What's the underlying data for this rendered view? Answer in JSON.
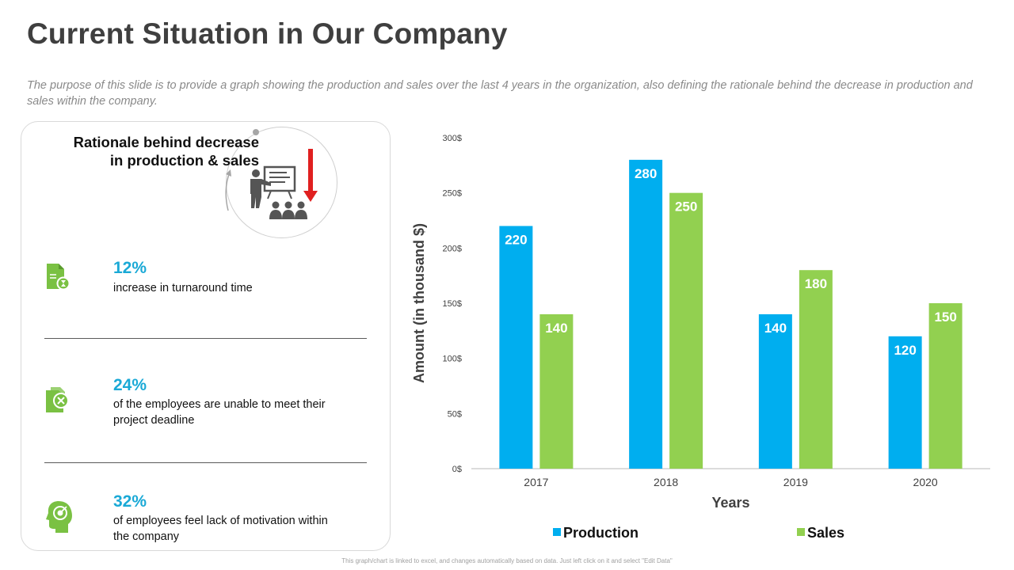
{
  "title": "Current Situation in Our Company",
  "subtitle": "The purpose of this slide is to provide a graph showing the production and sales over the last 4 years in the organization, also defining the rationale behind the decrease in production and sales within the company.",
  "rationale": {
    "title_line1": "Rationale behind decrease",
    "title_line2": "in production & sales",
    "icon": "presenter-icon",
    "arrow_color": "#e02020"
  },
  "stats": [
    {
      "icon": "document-timer-icon",
      "percent": "12%",
      "desc_line1": "increase in turnaround time",
      "desc_line2": ""
    },
    {
      "icon": "document-cancel-icon",
      "percent": "24%",
      "desc_line1": "of the employees are unable to meet their",
      "desc_line2": "project deadline"
    },
    {
      "icon": "head-target-icon",
      "percent": "32%",
      "desc_line1": "of employees feel lack of motivation within",
      "desc_line2": "the company"
    }
  ],
  "colors": {
    "production": "#00aeef",
    "sales": "#92d050",
    "icon_green": "#7ac143",
    "percent": "#1aa9d6"
  },
  "chart_data": {
    "type": "bar",
    "categories": [
      "2017",
      "2018",
      "2019",
      "2020"
    ],
    "series": [
      {
        "name": "Production",
        "values": [
          220,
          280,
          140,
          120
        ]
      },
      {
        "name": "Sales",
        "values": [
          140,
          250,
          180,
          150
        ]
      }
    ],
    "ylim": [
      0,
      300
    ],
    "yticks": [
      "0$",
      "50$",
      "100$",
      "150$",
      "200$",
      "250$",
      "300$"
    ],
    "tick_step": 50,
    "xlabel": "Years",
    "ylabel": "Amount (in thousand $)",
    "legend_position": "bottom",
    "grid": false
  },
  "footnote": "This graph/chart is linked to excel, and changes automatically based on data. Just left click on it and select \"Edit Data\""
}
